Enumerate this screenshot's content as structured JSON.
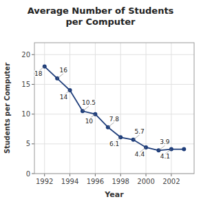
{
  "chart_data": {
    "type": "line",
    "title": "Average Number of Students\nper Computer",
    "x_label": "Year",
    "y_label": "Students per Computer",
    "x": [
      1992,
      1993,
      1994,
      1995,
      1996,
      1997,
      1998,
      1999,
      2000,
      2001,
      2002,
      2003
    ],
    "values": [
      18,
      16,
      14,
      10.5,
      10,
      7.8,
      6.1,
      5.7,
      4.4,
      3.9,
      4.1,
      4.1
    ],
    "value_labels": [
      "18",
      "16",
      "14",
      "10.5",
      "10",
      "7.8",
      "6.1",
      "5.7",
      "4.4",
      "3.9",
      "4.1",
      null
    ],
    "data_labels": true,
    "color": "#1e3d7a",
    "marker": "circle",
    "xlim": [
      1991.2,
      2003.8
    ],
    "xticks": [
      1992,
      1994,
      1996,
      1998,
      2000,
      2002
    ],
    "ylim": [
      0,
      22
    ],
    "yticks": [
      0,
      5,
      10,
      15,
      20
    ],
    "grid": true
  }
}
